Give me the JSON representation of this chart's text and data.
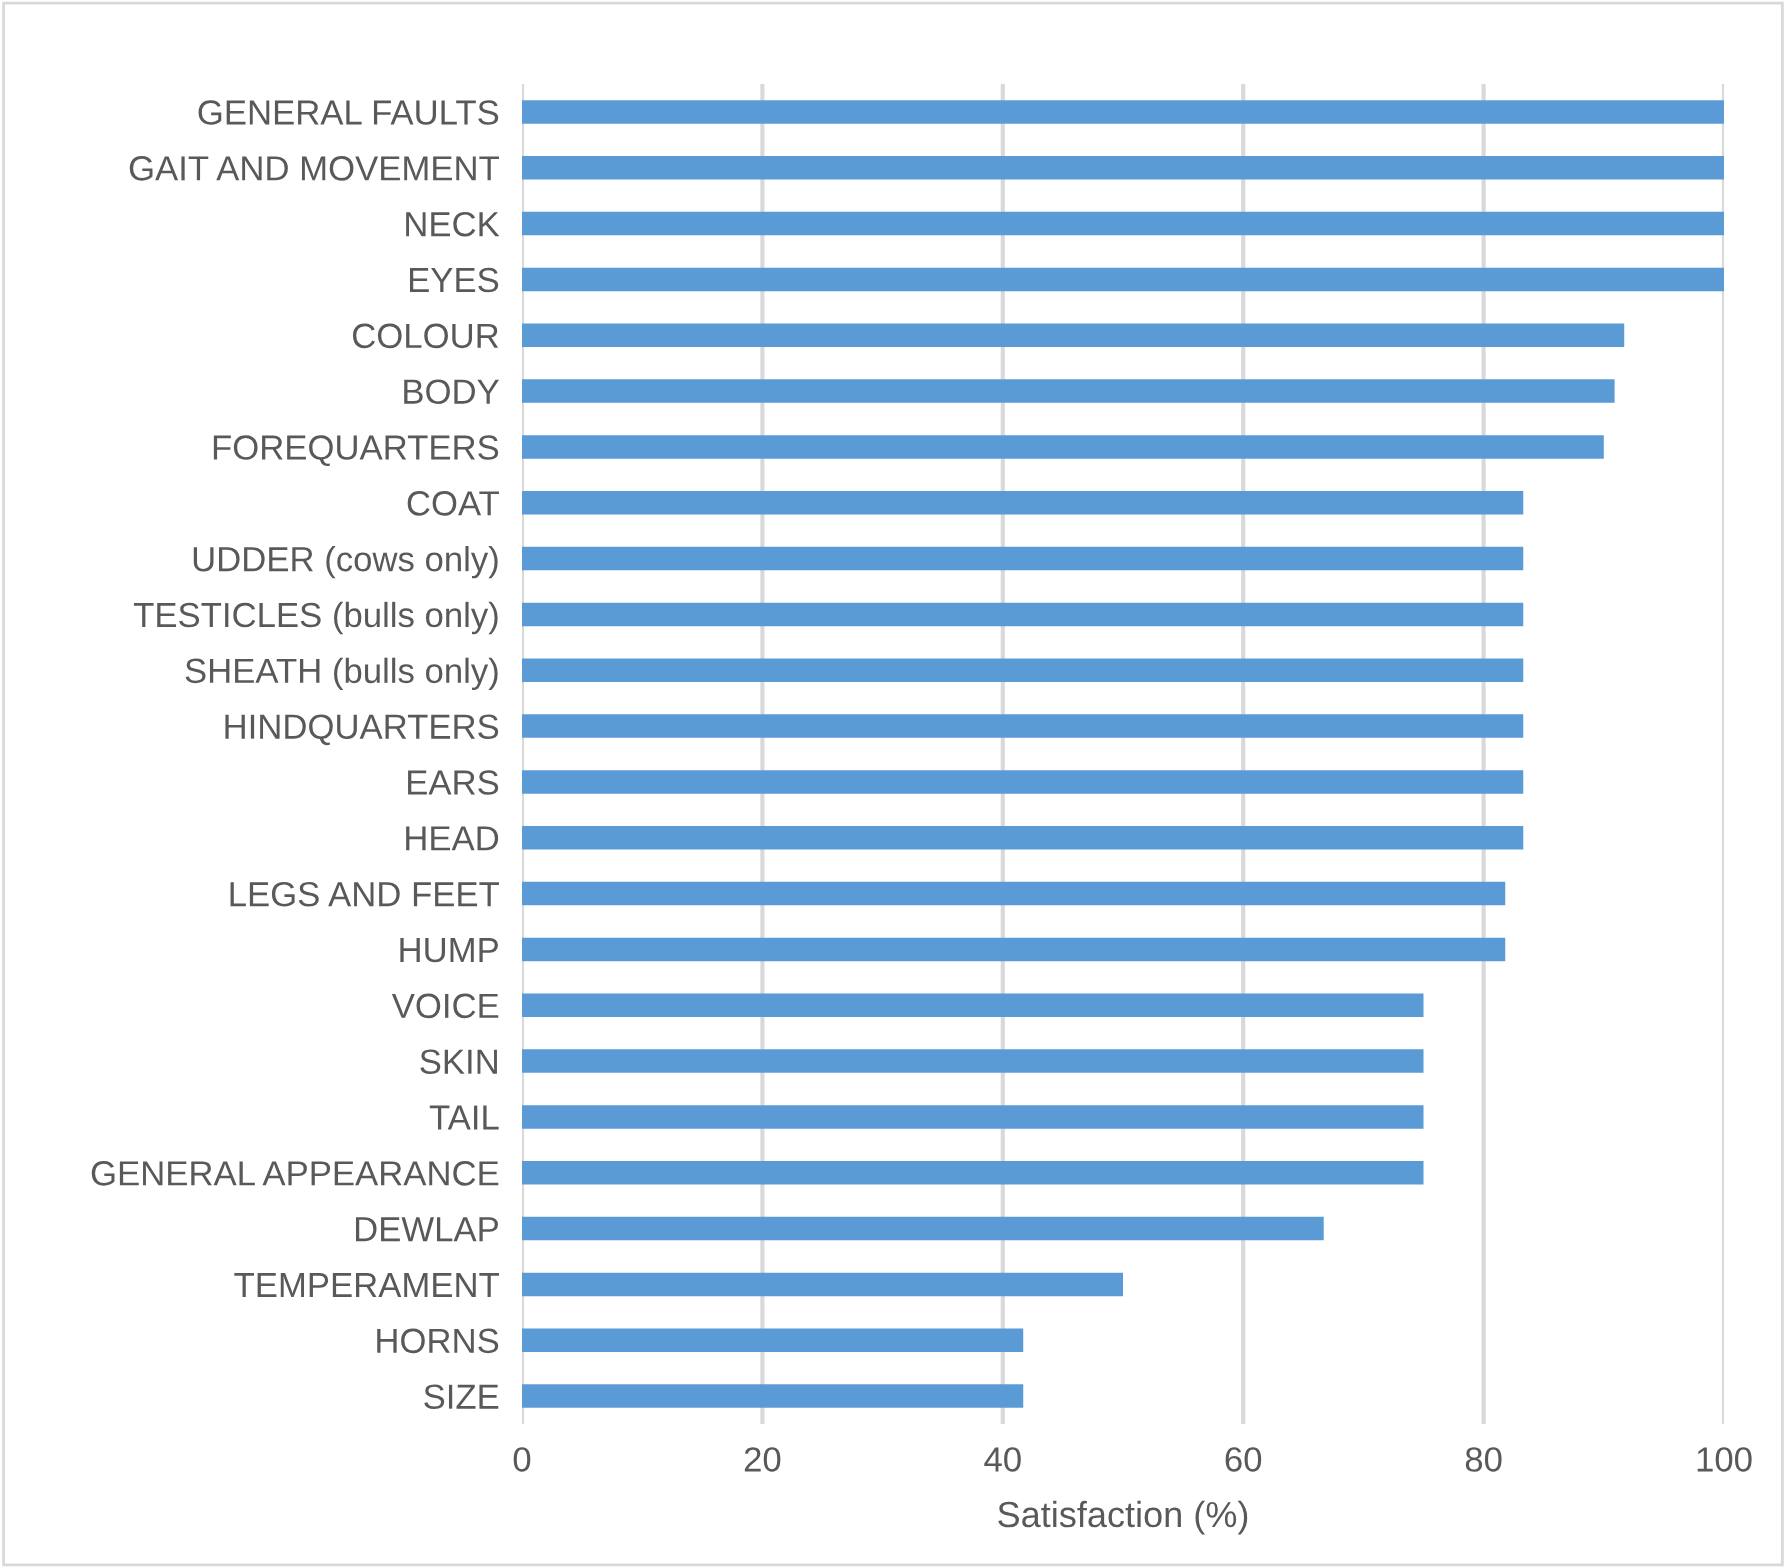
{
  "chart_data": {
    "type": "bar",
    "orientation": "horizontal",
    "xlabel": "Satisfaction (%)",
    "categories": [
      "GENERAL FAULTS",
      "GAIT AND MOVEMENT",
      "NECK",
      "EYES",
      "COLOUR",
      "BODY",
      "FOREQUARTERS",
      "COAT",
      "UDDER (cows only)",
      "TESTICLES (bulls only)",
      "SHEATH (bulls only)",
      "HINDQUARTERS",
      "EARS",
      "HEAD",
      "LEGS AND FEET",
      "HUMP",
      "VOICE",
      "SKIN",
      "TAIL",
      "GENERAL APPEARANCE",
      "DEWLAP",
      "TEMPERAMENT",
      "HORNS",
      "SIZE"
    ],
    "values": [
      100,
      100,
      100,
      100,
      91.7,
      90.9,
      90.0,
      83.3,
      83.3,
      83.3,
      83.3,
      83.3,
      83.3,
      83.3,
      81.8,
      81.8,
      75.0,
      75.0,
      75.0,
      75.0,
      66.7,
      50.0,
      41.7,
      41.7
    ],
    "color": "#5b9bd5",
    "xlim": [
      0,
      100
    ],
    "xticks": [
      0,
      20,
      40,
      60,
      80,
      100
    ],
    "grid": "x"
  }
}
